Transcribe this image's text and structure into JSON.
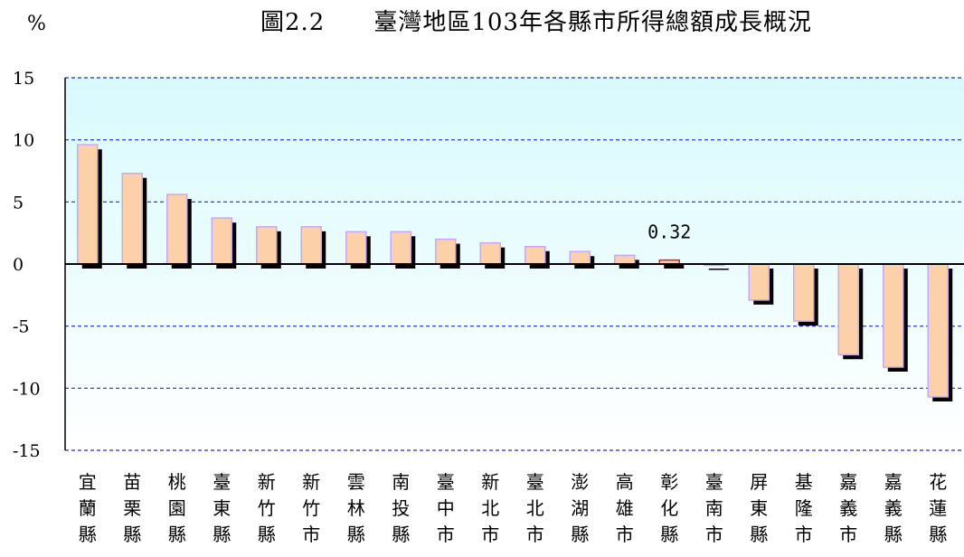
{
  "chart_data": {
    "type": "bar",
    "title": "圖2.2　　臺灣地區103年各縣市所得總額成長概況",
    "unit_label": "%",
    "xlabel": "",
    "ylabel": "",
    "ylim": [
      -15,
      15
    ],
    "yticks": [
      15,
      10,
      5,
      0,
      -5,
      -10,
      -15
    ],
    "grid": true,
    "legend": "none",
    "categories": [
      [
        "宜",
        "蘭",
        "縣"
      ],
      [
        "苗",
        "栗",
        "縣"
      ],
      [
        "桃",
        "園",
        "縣"
      ],
      [
        "臺",
        "東",
        "縣"
      ],
      [
        "新",
        "竹",
        "縣"
      ],
      [
        "新",
        "竹",
        "市"
      ],
      [
        "雲",
        "林",
        "縣"
      ],
      [
        "南",
        "投",
        "縣"
      ],
      [
        "臺",
        "中",
        "市"
      ],
      [
        "新",
        "北",
        "市"
      ],
      [
        "臺",
        "北",
        "市"
      ],
      [
        "澎",
        "湖",
        "縣"
      ],
      [
        "高",
        "雄",
        "市"
      ],
      [
        "彰",
        "化",
        "縣"
      ],
      [
        "臺",
        "南",
        "市"
      ],
      [
        "屏",
        "東",
        "縣"
      ],
      [
        "基",
        "隆",
        "市"
      ],
      [
        "嘉",
        "義",
        "市"
      ],
      [
        "嘉",
        "義",
        "縣"
      ],
      [
        "花",
        "蓮",
        "縣"
      ]
    ],
    "values": [
      9.6,
      7.3,
      5.6,
      3.7,
      3.0,
      3.0,
      2.6,
      2.6,
      2.0,
      1.7,
      1.4,
      1.0,
      0.7,
      0.32,
      -0.1,
      -2.9,
      -4.6,
      -7.3,
      -8.3,
      -10.7
    ],
    "highlight_index": 13,
    "data_labels": [
      {
        "index": 13,
        "text": "0.32"
      }
    ],
    "colors": {
      "bar_fill": "#fcd0a8",
      "bar_edge": "#c8a8f0",
      "highlight_edge": "#e02020",
      "shadow": "#000000",
      "plot_top": "#d8fafd",
      "plot_bottom": "#ffffff",
      "grid": "#1e2bd0"
    }
  }
}
